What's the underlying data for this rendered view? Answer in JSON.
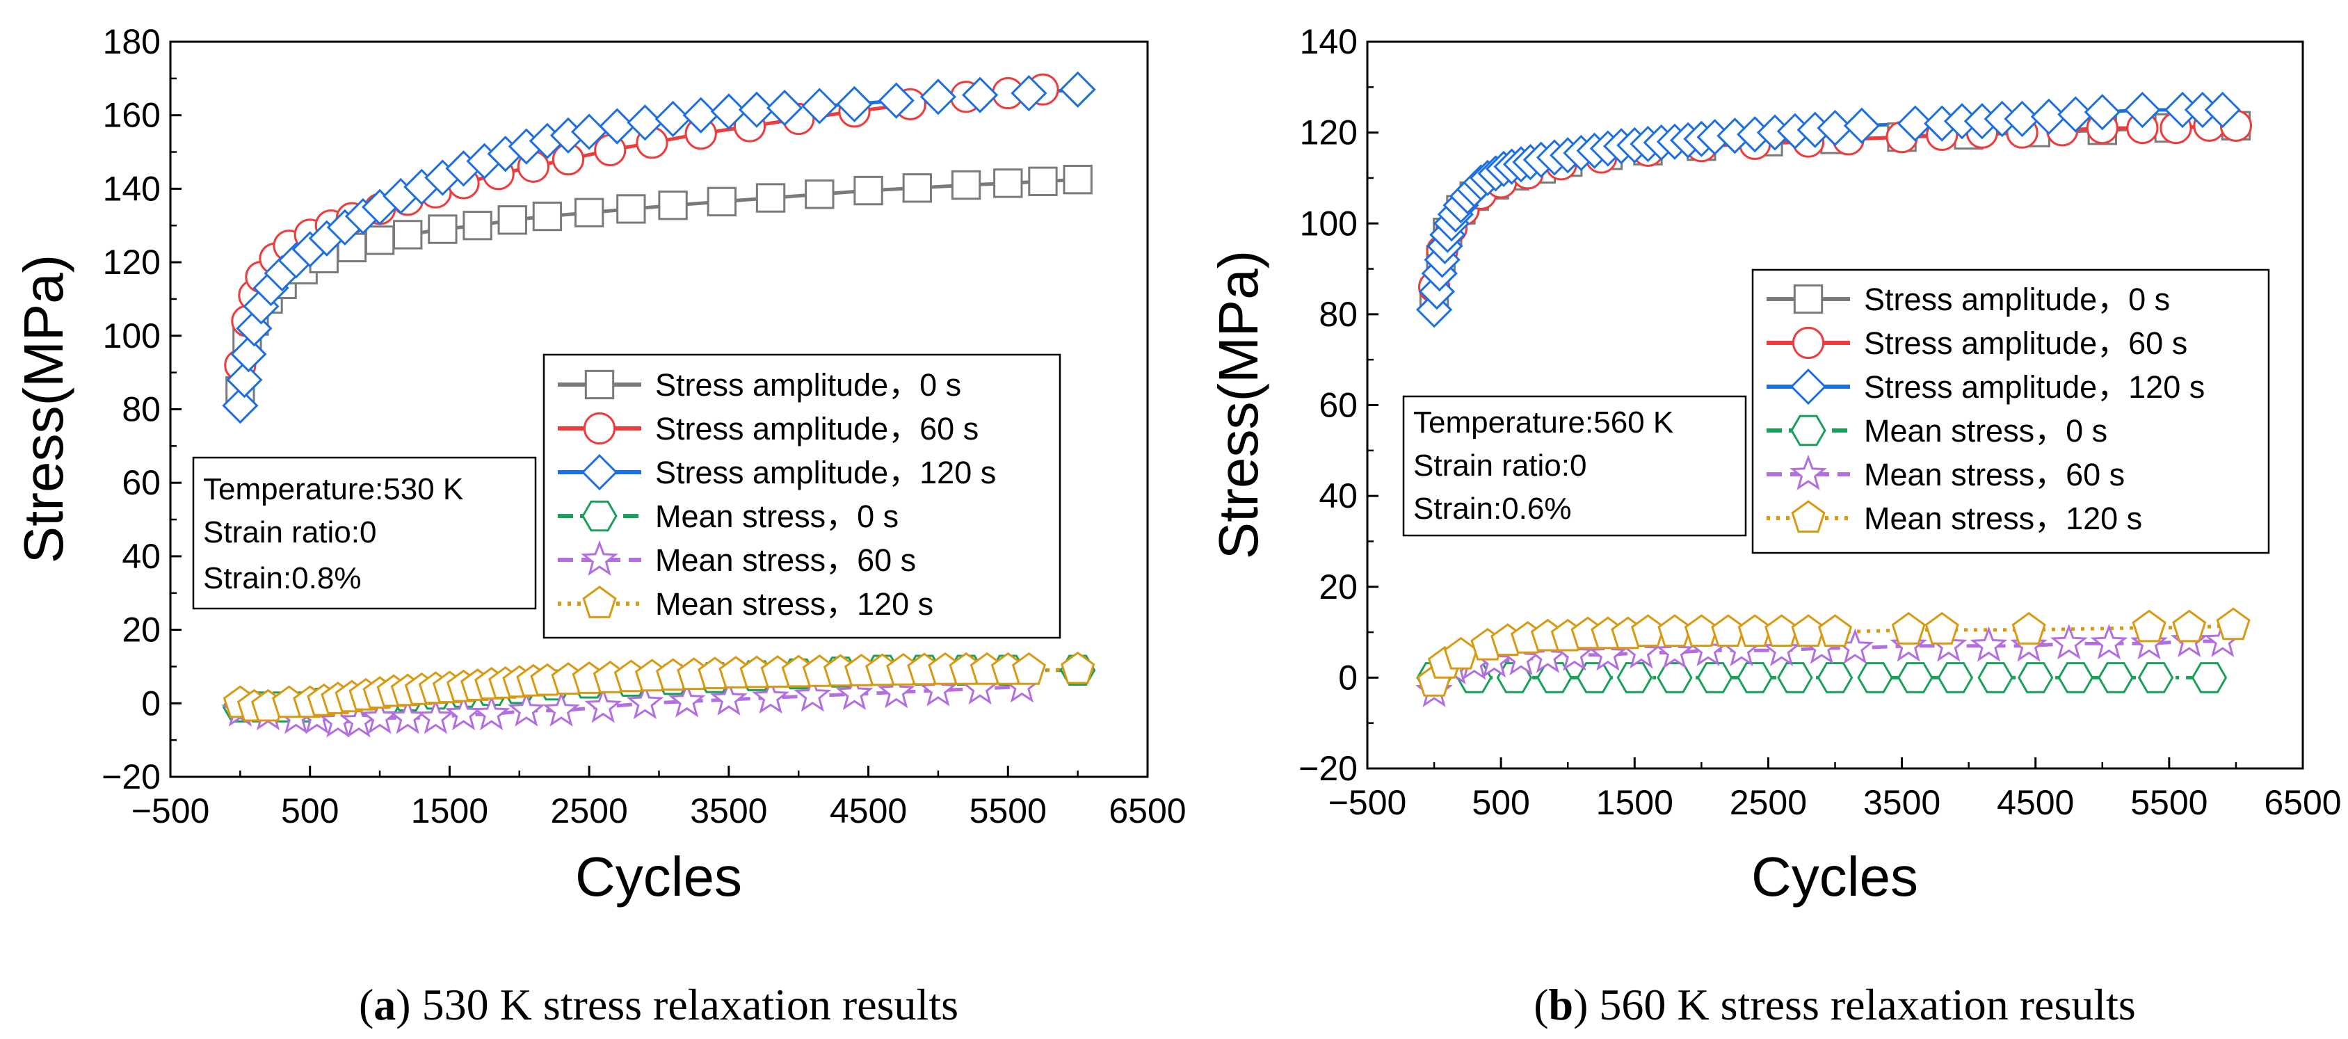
{
  "colors": {
    "amp0": "#7a7a7a",
    "amp60": "#ef3b3b",
    "amp120": "#1c6fe0",
    "mean0": "#19a05a",
    "mean60": "#b26fe0",
    "mean120": "#d89a10"
  },
  "chart_data": [
    {
      "type": "line",
      "panel": "a",
      "caption": {
        "label": "(a)",
        "letter": "a",
        "open": "(",
        "close": ")",
        "text": " 530 K stress relaxation results"
      },
      "xlabel": "Cycles",
      "ylabel": "Stress(MPa)",
      "xlim": [
        -500,
        6500
      ],
      "ylim": [
        -20,
        180
      ],
      "xticks": [
        -500,
        500,
        1500,
        2500,
        3500,
        4500,
        5500,
        6500
      ],
      "yticks": [
        -20,
        0,
        20,
        40,
        60,
        80,
        100,
        120,
        140,
        160,
        180
      ],
      "xtick_labels": [
        "−500",
        "500",
        "1500",
        "2500",
        "3500",
        "4500",
        "5500",
        "6500"
      ],
      "ytick_labels": [
        "−20",
        "0",
        "20",
        "40",
        "60",
        "80",
        "100",
        "120",
        "140",
        "160",
        "180"
      ],
      "legend_position": "lower-right",
      "info_box": {
        "lines": [
          "Temperature:530 K",
          "Strain ratio:0",
          "Strain:0.8%"
        ]
      },
      "series": [
        {
          "name": "Stress amplitude，0 s",
          "marker": "square",
          "color": "#7a7a7a",
          "dash": "solid",
          "x": [
            0,
            50,
            100,
            200,
            300,
            450,
            600,
            800,
            1000,
            1200,
            1450,
            1700,
            1950,
            2200,
            2500,
            2800,
            3100,
            3450,
            3800,
            4150,
            4500,
            4850,
            5200,
            5500,
            5750,
            6000
          ],
          "y": [
            85,
            98,
            104,
            110,
            114,
            118,
            121,
            124,
            126,
            127.5,
            129,
            130,
            131.5,
            132.5,
            133.5,
            134.5,
            135.5,
            136.5,
            137.5,
            138.5,
            139.5,
            140.2,
            141,
            141.5,
            142,
            142.5
          ]
        },
        {
          "name": "Stress amplitude，60 s",
          "marker": "circle",
          "color": "#ef3b3b",
          "dash": "solid",
          "x": [
            0,
            50,
            100,
            150,
            250,
            350,
            500,
            650,
            800,
            1000,
            1200,
            1400,
            1600,
            1850,
            2100,
            2350,
            2650,
            2950,
            3300,
            3650,
            4000,
            4400,
            4800,
            5200,
            5500,
            5750
          ],
          "y": [
            92,
            104,
            111,
            116,
            121,
            124.5,
            127.5,
            130,
            132,
            134.5,
            137,
            139,
            141.5,
            144,
            146,
            148,
            150.5,
            152.5,
            155,
            157,
            159,
            161,
            163,
            165,
            166,
            167
          ]
        },
        {
          "name": "Stress amplitude，120 s",
          "marker": "diamond",
          "color": "#1c6fe0",
          "dash": "solid",
          "x": [
            0,
            30,
            60,
            100,
            150,
            220,
            300,
            400,
            500,
            620,
            750,
            880,
            1000,
            1150,
            1300,
            1450,
            1600,
            1750,
            1900,
            2050,
            2200,
            2350,
            2500,
            2700,
            2900,
            3100,
            3300,
            3500,
            3700,
            3900,
            4150,
            4400,
            4700,
            5000,
            5300,
            5650,
            6000
          ],
          "y": [
            81,
            88,
            95,
            102,
            108,
            113,
            117,
            120.5,
            123.5,
            126.5,
            129.5,
            132.5,
            135,
            138,
            140.5,
            143,
            145.5,
            147.5,
            149.5,
            151.5,
            153,
            154.5,
            155.5,
            157,
            158,
            159,
            160,
            161,
            161.5,
            162,
            162.5,
            163,
            164,
            165,
            165.5,
            166,
            167
          ]
        },
        {
          "name": "Mean stress，0 s",
          "marker": "hexagon",
          "color": "#19a05a",
          "dash": "dashdot",
          "x": [
            0,
            150,
            300,
            450,
            600,
            750,
            900,
            1050,
            1200,
            1400,
            1600,
            1800,
            2000,
            2250,
            2500,
            2800,
            3100,
            3400,
            3700,
            4000,
            4300,
            4600,
            4900,
            5200,
            5500,
            6000
          ],
          "y": [
            -1,
            -1,
            -1,
            -1,
            0,
            0,
            1,
            1.5,
            2,
            2.5,
            3,
            3.5,
            4,
            5,
            5.5,
            6,
            6.5,
            7,
            7.5,
            8,
            8.5,
            9,
            9,
            9,
            9,
            9
          ]
        },
        {
          "name": "Mean stress，60 s",
          "marker": "star",
          "color": "#b26fe0",
          "dash": "dashed",
          "x": [
            0,
            200,
            400,
            550,
            700,
            850,
            1000,
            1200,
            1400,
            1600,
            1800,
            2050,
            2300,
            2600,
            2900,
            3200,
            3500,
            3800,
            4100,
            4400,
            4700,
            5000,
            5300,
            5600
          ],
          "y": [
            -2,
            -3,
            -4,
            -4,
            -5,
            -5,
            -4,
            -4,
            -4,
            -3,
            -3,
            -2,
            -2,
            -1,
            0,
            0.5,
            1,
            1.5,
            2,
            2.5,
            3,
            3.5,
            4,
            4.5
          ]
        },
        {
          "name": "Mean stress，120 s",
          "marker": "pentagon",
          "color": "#d89a10",
          "dash": "dotted",
          "x": [
            0,
            100,
            200,
            350,
            500,
            600,
            700,
            800,
            900,
            1000,
            1100,
            1200,
            1300,
            1400,
            1500,
            1600,
            1700,
            1800,
            1900,
            2000,
            2100,
            2200,
            2350,
            2500,
            2650,
            2800,
            2950,
            3100,
            3250,
            3400,
            3550,
            3700,
            3850,
            4000,
            4150,
            4300,
            4450,
            4600,
            4750,
            4900,
            5050,
            5200,
            5350,
            5500,
            5650,
            6000
          ],
          "y": [
            0,
            -1,
            -1,
            0,
            0,
            0.5,
            1,
            1.5,
            2,
            2.5,
            3,
            3.2,
            3.5,
            3.8,
            4,
            4.3,
            4.6,
            5,
            5.2,
            5.5,
            5.8,
            6,
            6.3,
            6.5,
            6.7,
            7,
            7.2,
            7.4,
            7.6,
            7.8,
            8,
            8.1,
            8.2,
            8.3,
            8.4,
            8.5,
            8.6,
            8.7,
            8.8,
            8.9,
            9,
            9,
            9,
            9,
            9,
            9.2
          ]
        }
      ]
    },
    {
      "type": "line",
      "panel": "b",
      "caption": {
        "label": "(b)",
        "letter": "b",
        "open": "(",
        "close": ")",
        "text": " 560 K stress relaxation results"
      },
      "xlabel": "Cycles",
      "ylabel": "Stress(MPa)",
      "xlim": [
        -500,
        6500
      ],
      "ylim": [
        -20,
        140
      ],
      "xticks": [
        -500,
        500,
        1500,
        2500,
        3500,
        4500,
        5500,
        6500
      ],
      "yticks": [
        -20,
        0,
        20,
        40,
        60,
        80,
        100,
        120,
        140
      ],
      "xtick_labels": [
        "−500",
        "500",
        "1500",
        "2500",
        "3500",
        "4500",
        "5500",
        "6500"
      ],
      "ytick_labels": [
        "−20",
        "0",
        "20",
        "40",
        "60",
        "80",
        "100",
        "120",
        "140"
      ],
      "legend_position": "center-right",
      "info_box": {
        "lines": [
          "Temperature:560 K",
          "Strain ratio:0",
          "Strain:0.6%"
        ]
      },
      "series": [
        {
          "name": "Stress amplitude，0 s",
          "marker": "square",
          "color": "#7a7a7a",
          "dash": "solid",
          "x": [
            0,
            50,
            100,
            200,
            300,
            450,
            600,
            800,
            1000,
            1300,
            1600,
            2000,
            2500,
            3000,
            3500,
            4000,
            4500,
            5000,
            5500,
            6000
          ],
          "y": [
            84,
            92,
            98,
            103,
            106,
            108.5,
            110.5,
            112,
            113.5,
            115,
            116,
            117,
            118,
            118.5,
            119,
            119.5,
            120,
            120.5,
            121,
            121.5
          ]
        },
        {
          "name": "Stress amplitude，60 s",
          "marker": "circle",
          "color": "#ef3b3b",
          "dash": "solid",
          "x": [
            0,
            60,
            130,
            220,
            350,
            500,
            700,
            950,
            1250,
            1600,
            2000,
            2400,
            2800,
            3100,
            3500,
            3800,
            4100,
            4400,
            4700,
            5000,
            5300,
            5550,
            5800,
            6000
          ],
          "y": [
            86,
            94,
            99,
            103,
            106.5,
            109,
            111,
            113,
            114.5,
            116,
            117,
            117.5,
            118,
            118.5,
            119,
            119.5,
            120,
            120,
            120.5,
            121,
            121,
            121,
            121.5,
            121.5
          ]
        },
        {
          "name": "Stress amplitude，120 s",
          "marker": "diamond",
          "color": "#1c6fe0",
          "dash": "solid",
          "x": [
            0,
            20,
            40,
            60,
            80,
            100,
            130,
            160,
            200,
            250,
            300,
            350,
            400,
            460,
            520,
            580,
            650,
            720,
            800,
            900,
            1000,
            1100,
            1200,
            1300,
            1400,
            1500,
            1600,
            1700,
            1800,
            1900,
            2000,
            2100,
            2250,
            2400,
            2550,
            2700,
            2850,
            3000,
            3200,
            3600,
            3800,
            3950,
            4100,
            4250,
            4400,
            4600,
            4800,
            5000,
            5300,
            5600,
            5750,
            5900
          ],
          "y": [
            81,
            85,
            89,
            92,
            95,
            97.5,
            100,
            102,
            104,
            106,
            107.5,
            109,
            110,
            111,
            112,
            112.5,
            113,
            113.5,
            114,
            114.5,
            115,
            115.5,
            116,
            116.5,
            117,
            117.2,
            117.5,
            117.8,
            118,
            118.3,
            118.6,
            119,
            119.3,
            119.6,
            120,
            120.3,
            120.6,
            121,
            121.5,
            122,
            122,
            122.5,
            122.5,
            123,
            123,
            123.5,
            124,
            124.5,
            125,
            125,
            125,
            125
          ]
        },
        {
          "name": "Mean stress，0 s",
          "marker": "hexagon",
          "color": "#19a05a",
          "dash": "dashdot",
          "x": [
            0,
            300,
            600,
            900,
            1200,
            1500,
            1800,
            2100,
            2400,
            2700,
            3000,
            3300,
            3600,
            3900,
            4200,
            4500,
            4800,
            5100,
            5400,
            5800
          ],
          "y": [
            0,
            0,
            0,
            0,
            0,
            0,
            0,
            0,
            0,
            0,
            0,
            0,
            0,
            0,
            0,
            0,
            0,
            0,
            0,
            0
          ]
        },
        {
          "name": "Mean stress，60 s",
          "marker": "star",
          "color": "#b26fe0",
          "dash": "dashed",
          "x": [
            0,
            150,
            300,
            450,
            650,
            850,
            1050,
            1300,
            1550,
            1800,
            2050,
            2300,
            2600,
            2900,
            3150,
            3550,
            3850,
            4150,
            4450,
            4750,
            5050,
            5350,
            5650,
            5900
          ],
          "y": [
            -3,
            2,
            3,
            3.5,
            4,
            4.5,
            5,
            5,
            5.5,
            5.5,
            6,
            6,
            6,
            6.5,
            6.5,
            7,
            7,
            7,
            7,
            7.5,
            7.5,
            7.5,
            8,
            8
          ]
        },
        {
          "name": "Mean stress，120 s",
          "marker": "pentagon",
          "color": "#d89a10",
          "dash": "dotted",
          "x": [
            0,
            80,
            200,
            400,
            550,
            700,
            850,
            1000,
            1150,
            1300,
            1450,
            1600,
            1800,
            2000,
            2200,
            2400,
            2600,
            2800,
            3000,
            3550,
            3800,
            4450,
            5350,
            5650,
            5980
          ],
          "y": [
            -1,
            3,
            5,
            7,
            8,
            8.5,
            9,
            9,
            9.5,
            9.5,
            9.5,
            10,
            10,
            10,
            10,
            10,
            10,
            10,
            10,
            10.5,
            10.5,
            10.5,
            11,
            11,
            11.5
          ]
        }
      ]
    }
  ]
}
